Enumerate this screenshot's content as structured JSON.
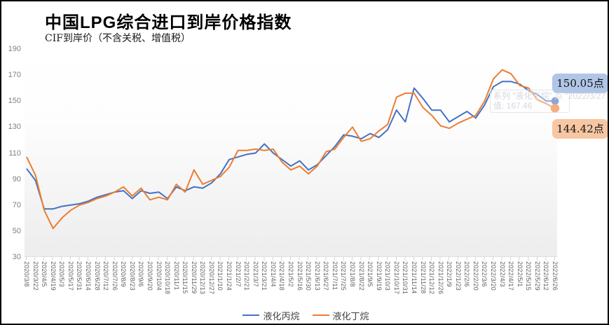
{
  "title": "中国LPG综合进口到岸价格指数",
  "subtitle": "CIF到岸价（不含关税、增值税）",
  "badges": {
    "propane": "150.05点",
    "butane": "144.42点",
    "propane_bg": "#b1c5e7",
    "butane_bg": "#f7c7a3"
  },
  "tooltip": {
    "line1": "系列 \"液化丁烷\" 点 \"2022/3/27\"",
    "line2": "值: 167.46"
  },
  "colors": {
    "propane_line": "#4472c4",
    "butane_line": "#ed7d31"
  },
  "chart_data": {
    "type": "line",
    "title": "中国LPG综合进口到岸价格指数",
    "subtitle": "CIF到岸价（不含关税、增值税）",
    "ylim": [
      30,
      190
    ],
    "yticks": [
      190,
      170,
      150,
      130,
      110,
      90,
      70,
      50,
      30
    ],
    "grid": false,
    "legend_position": "bottom",
    "x": [
      "2020/3/8",
      "2020/3/22",
      "2020/4/5",
      "2020/4/19",
      "2020/5/3",
      "2020/5/17",
      "2020/5/31",
      "2020/6/14",
      "2020/6/28",
      "2020/7/12",
      "2020/7/26",
      "2020/8/9",
      "2020/8/23",
      "2020/9/6",
      "2020/9/20",
      "2020/10/4",
      "2020/10/18",
      "2020/11/1",
      "2020/11/15",
      "2020/11/29",
      "2020/12/13",
      "2020/12/27",
      "2021/1/10",
      "2021/1/24",
      "2021/2/7",
      "2021/2/21",
      "2021/3/7",
      "2021/3/21",
      "2021/4/4",
      "2021/4/18",
      "2021/5/2",
      "2021/5/16",
      "2021/5/30",
      "2021/6/13",
      "2021/6/27",
      "2021/7/11",
      "2021/7/25",
      "2021/8/8",
      "2021/8/22",
      "2021/9/5",
      "2021/9/19",
      "2021/10/3",
      "2021/10/17",
      "2021/10/31",
      "2021/11/14",
      "2021/11/28",
      "2021/12/12",
      "2021/12/26",
      "2022/1/9",
      "2022/1/23",
      "2022/2/6",
      "2022/2/20",
      "2022/3/6",
      "2022/3/20",
      "2022/4/3",
      "2022/4/17",
      "2022/5/1",
      "2022/5/15",
      "2022/5/29",
      "2022/6/12",
      "2022/6/26"
    ],
    "series": [
      {
        "name": "液化丙烷",
        "color": "#4472c4",
        "end_label": "150.05点",
        "values": [
          98,
          89,
          67,
          67,
          69,
          70,
          71,
          73,
          76,
          78,
          80,
          81,
          75,
          81,
          79,
          80,
          75,
          84,
          81,
          84,
          83,
          87,
          94,
          105,
          107,
          109,
          110,
          117,
          110,
          105,
          100,
          104,
          97,
          101,
          108,
          115,
          124,
          123,
          121,
          125,
          122,
          128,
          143,
          134,
          160,
          152,
          143,
          143,
          134,
          138,
          142,
          137,
          147,
          161,
          165,
          165,
          163,
          158,
          155,
          150,
          150.05
        ]
      },
      {
        "name": "液化丁烷",
        "color": "#ed7d31",
        "end_label": "144.42点",
        "values": [
          107,
          93,
          66,
          52,
          60,
          66,
          70,
          72,
          75,
          77,
          80,
          84,
          77,
          83,
          74,
          76,
          74,
          86,
          80,
          97,
          86,
          89,
          92,
          99,
          112,
          112,
          113,
          112,
          113,
          103,
          97,
          100,
          94,
          100,
          111,
          113,
          122,
          130,
          119,
          121,
          127,
          132,
          153,
          156,
          156,
          145,
          139,
          131,
          129,
          133,
          136,
          139,
          150,
          167,
          174,
          171,
          162,
          160,
          151,
          148,
          144.42
        ]
      }
    ]
  }
}
